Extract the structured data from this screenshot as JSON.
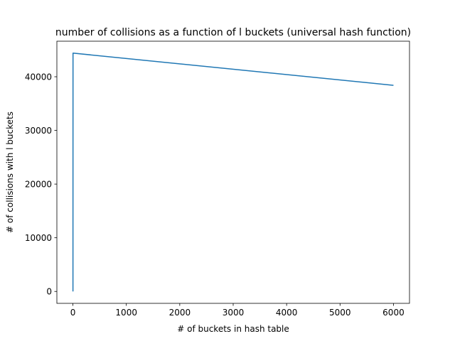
{
  "chart_data": {
    "type": "line",
    "title": "number of collisions as a function of l buckets (universal hash function)",
    "xlabel": "# of buckets in hash table",
    "ylabel": "# of collisions with l buckets",
    "xlim": [
      -300,
      6300
    ],
    "ylim": [
      -2220,
      46620
    ],
    "xticks": [
      0,
      1000,
      2000,
      3000,
      4000,
      5000,
      6000
    ],
    "xtick_labels": [
      "0",
      "1000",
      "2000",
      "3000",
      "4000",
      "5000",
      "6000"
    ],
    "yticks": [
      0,
      10000,
      20000,
      30000,
      40000
    ],
    "ytick_labels": [
      "0",
      "10000",
      "20000",
      "30000",
      "40000"
    ],
    "grid": false,
    "legend": "none",
    "series": [
      {
        "color": "#1f77b4",
        "x": [
          1,
          2,
          6000
        ],
        "y": [
          0,
          44400,
          38400
        ]
      }
    ]
  }
}
